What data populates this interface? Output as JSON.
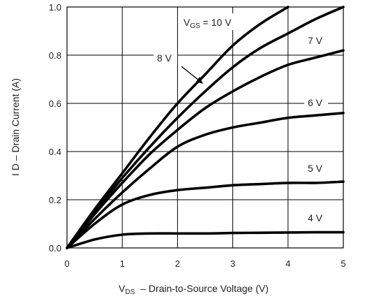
{
  "chart_data": {
    "type": "line",
    "title": "",
    "xlabel_main": "V",
    "xlabel_sub": "DS",
    "xlabel_rest": "–  Drain-to-Source Voltage (V)",
    "ylabel": "I D – Drain Current (A)",
    "xlim": [
      0,
      5
    ],
    "ylim": [
      0,
      1.0
    ],
    "xticks": [
      0,
      1,
      2,
      3,
      4,
      5
    ],
    "yticks": [
      0.0,
      0.2,
      0.4,
      0.6,
      0.8,
      1.0
    ],
    "xtick_labels": [
      "0",
      "1",
      "2",
      "3",
      "4",
      "5"
    ],
    "ytick_labels": [
      "0.0",
      "0.2",
      "0.4",
      "0.6",
      "0.8",
      "1.0"
    ],
    "grid": true,
    "label_vgs_main": "V",
    "label_vgs_sub": "GS",
    "label_vgs_rest": " = 10 V",
    "series": [
      {
        "name": "10 V",
        "label": "= 10 V",
        "x": [
          0,
          0.5,
          1,
          1.5,
          2,
          2.5,
          3,
          3.5,
          4
        ],
        "y": [
          0,
          0.16,
          0.31,
          0.46,
          0.6,
          0.72,
          0.84,
          0.93,
          1.0
        ]
      },
      {
        "name": "8 V",
        "label": "8 V",
        "x": [
          0,
          0.5,
          1,
          1.5,
          2,
          2.5,
          3,
          3.5,
          4,
          4.5,
          5
        ],
        "y": [
          0,
          0.15,
          0.29,
          0.42,
          0.54,
          0.65,
          0.75,
          0.83,
          0.89,
          0.95,
          1.0
        ]
      },
      {
        "name": "7 V",
        "label": "7 V",
        "x": [
          0,
          0.5,
          1,
          1.5,
          2,
          2.5,
          3,
          3.5,
          4,
          4.5,
          5
        ],
        "y": [
          0,
          0.14,
          0.27,
          0.39,
          0.49,
          0.58,
          0.65,
          0.71,
          0.76,
          0.79,
          0.82
        ]
      },
      {
        "name": "6 V",
        "label": "6 V",
        "x": [
          0,
          0.5,
          1,
          1.5,
          2,
          2.5,
          3,
          3.5,
          4,
          4.5,
          5
        ],
        "y": [
          0,
          0.12,
          0.23,
          0.33,
          0.42,
          0.47,
          0.5,
          0.52,
          0.54,
          0.55,
          0.56
        ]
      },
      {
        "name": "5 V",
        "label": "5 V",
        "x": [
          0,
          0.5,
          1,
          1.5,
          2,
          2.5,
          3,
          3.5,
          4,
          4.5,
          5
        ],
        "y": [
          0,
          0.1,
          0.18,
          0.22,
          0.24,
          0.25,
          0.26,
          0.265,
          0.27,
          0.27,
          0.275
        ]
      },
      {
        "name": "4 V",
        "label": "4 V",
        "x": [
          0,
          0.5,
          1,
          1.5,
          2,
          2.5,
          3,
          3.5,
          4,
          4.5,
          5
        ],
        "y": [
          0,
          0.035,
          0.055,
          0.06,
          0.06,
          0.06,
          0.062,
          0.063,
          0.064,
          0.065,
          0.065
        ]
      }
    ]
  }
}
